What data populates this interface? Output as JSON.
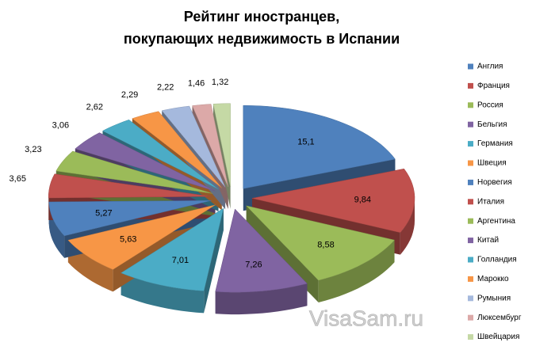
{
  "chart_data": {
    "type": "pie3d",
    "title": [
      "Рейтинг иностранцев,",
      "покупающих недвижимость в Испании"
    ],
    "categories": [
      "Англия",
      "Франция",
      "Россия",
      "Бельгия",
      "Германия",
      "Швеция",
      "Норвегия",
      "Италия",
      "Аргентина",
      "Китай",
      "Голландия",
      "Марокко",
      "Румыния",
      "Люксембург",
      "Швейцария"
    ],
    "values": [
      15.1,
      9.84,
      8.58,
      7.26,
      7.01,
      5.63,
      5.27,
      3.65,
      3.23,
      3.06,
      2.62,
      2.29,
      2.22,
      1.46,
      1.32
    ],
    "value_labels": [
      "15,1",
      "9,84",
      "8,58",
      "7,26",
      "7,01",
      "5,63",
      "5,27",
      "3,65",
      "3,23",
      "3,06",
      "2,62",
      "2,29",
      "2,22",
      "1,46",
      "1,32"
    ],
    "colors": [
      "#4f81bd",
      "#c0504d",
      "#9bbb59",
      "#8064a2",
      "#4bacc6",
      "#f79646",
      "#4f81bd",
      "#c0504d",
      "#9bbb59",
      "#8064a2",
      "#4bacc6",
      "#f79646",
      "#a5b9dd",
      "#dca9a8",
      "#c5d9a5"
    ],
    "legend": "right",
    "watermark": "VisaSam.ru"
  }
}
